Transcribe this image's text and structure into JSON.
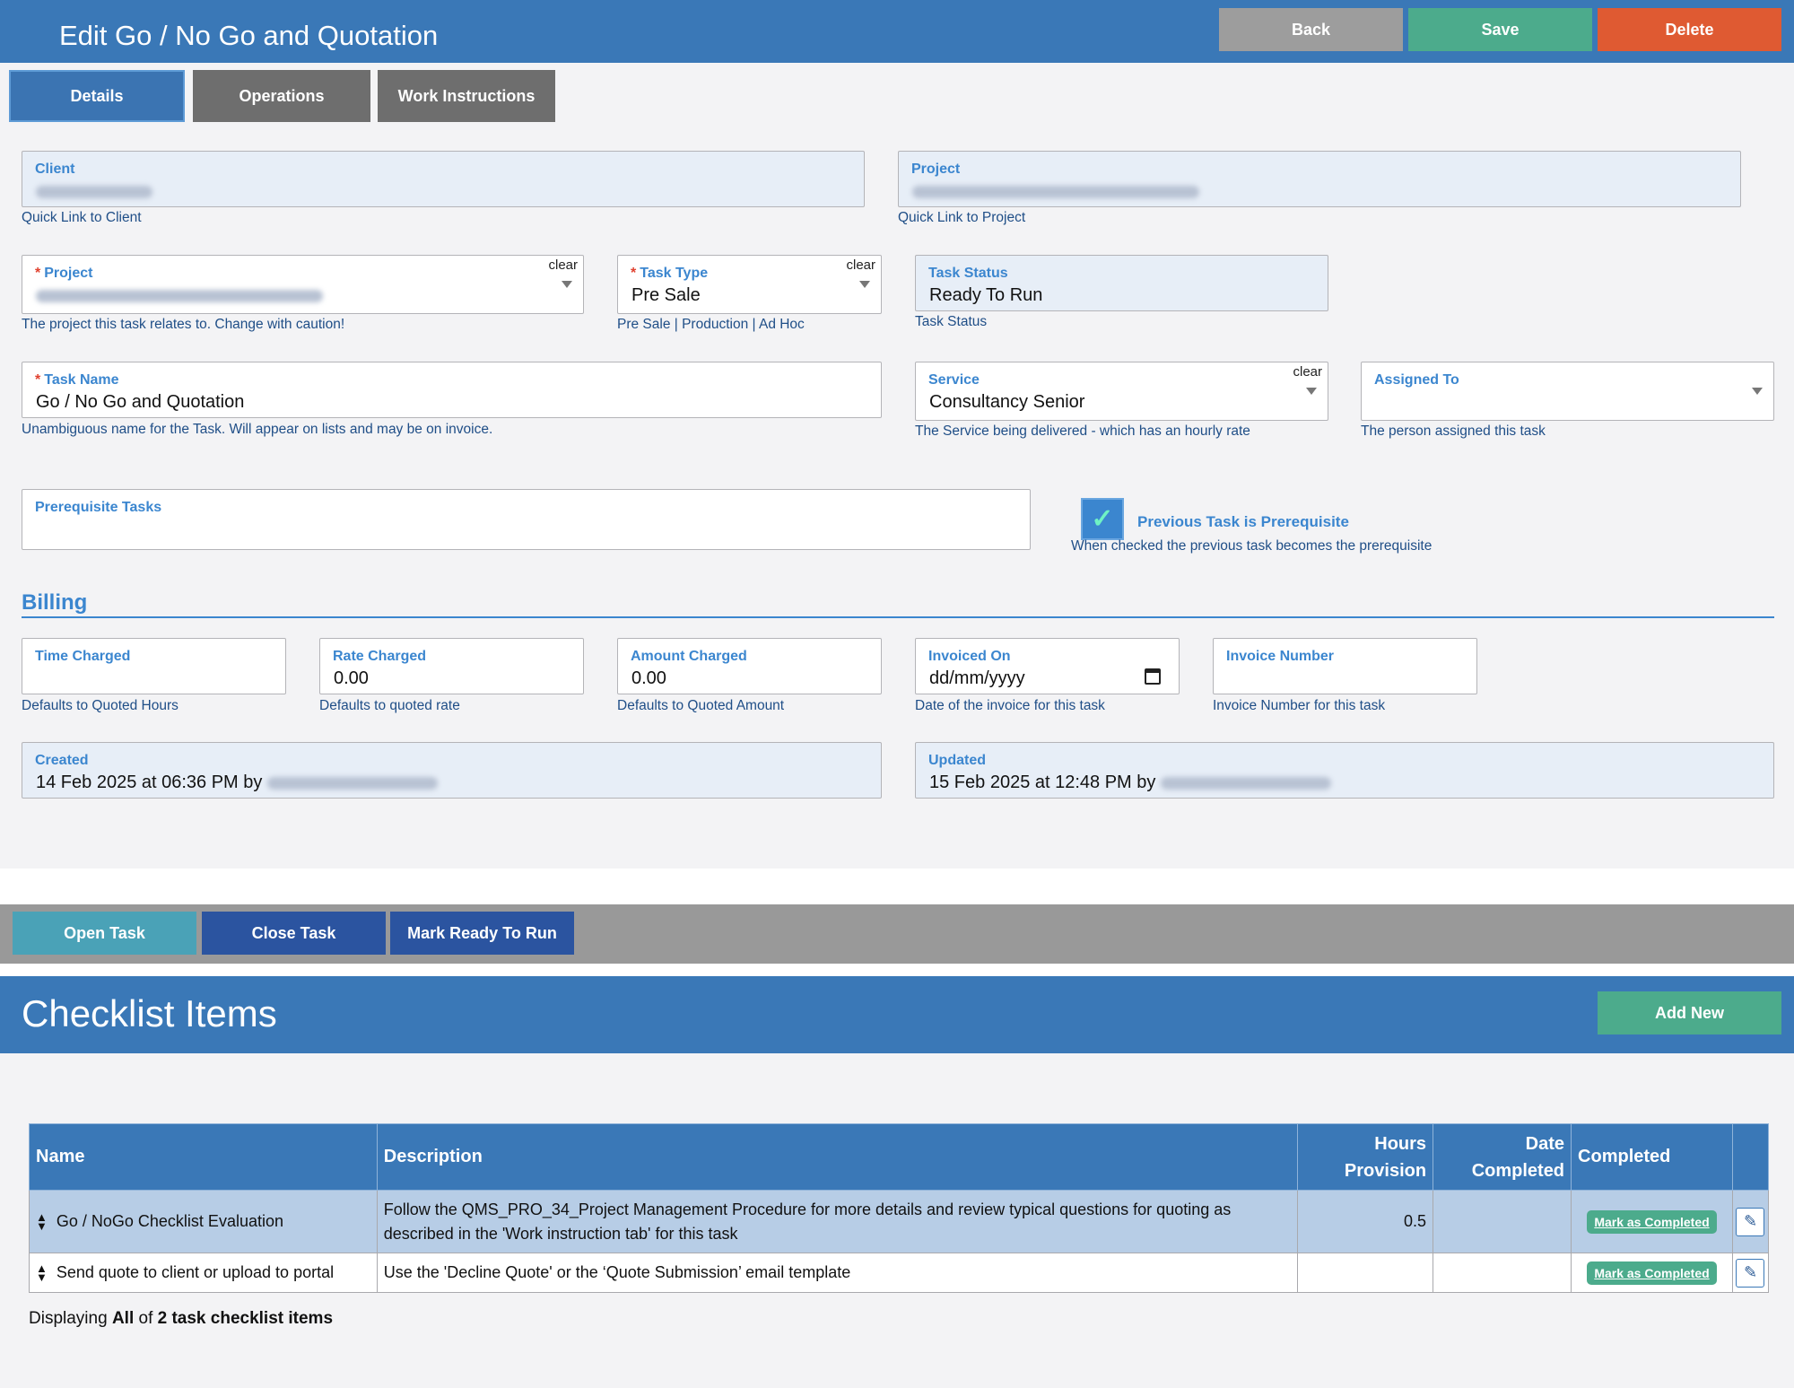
{
  "header": {
    "title": "Edit Go / No Go and Quotation",
    "back_label": "Back",
    "save_label": "Save",
    "delete_label": "Delete"
  },
  "tabs": [
    {
      "label": "Details"
    },
    {
      "label": "Operations"
    },
    {
      "label": "Work Instructions"
    }
  ],
  "fields": {
    "client": {
      "label": "Client",
      "help": "Quick Link to Client"
    },
    "project_link": {
      "label": "Project",
      "help": "Quick Link to Project"
    },
    "project": {
      "label": "Project",
      "clear": "clear",
      "help": "The project this task relates to. Change with caution!"
    },
    "task_type": {
      "label": "Task Type",
      "clear": "clear",
      "value": "Pre Sale",
      "help": "Pre Sale | Production | Ad Hoc"
    },
    "task_status": {
      "label": "Task Status",
      "value": "Ready To Run",
      "help": "Task Status"
    },
    "task_name": {
      "label": "Task Name",
      "value": "Go / No Go and Quotation",
      "help": "Unambiguous name for the Task. Will appear on lists and may be on invoice."
    },
    "service": {
      "label": "Service",
      "clear": "clear",
      "value": "Consultancy Senior",
      "help": "The Service being delivered - which has an hourly rate"
    },
    "assigned_to": {
      "label": "Assigned To",
      "help": "The person assigned this task"
    },
    "prerequisite": {
      "label": "Prerequisite Tasks"
    },
    "previous_prereq": {
      "label": "Previous Task is Prerequisite",
      "help": "When checked the previous task becomes the prerequisite",
      "checked": true
    }
  },
  "billing": {
    "title": "Billing",
    "time_charged": {
      "label": "Time Charged",
      "help": "Defaults to Quoted Hours"
    },
    "rate_charged": {
      "label": "Rate Charged",
      "value": "0.00",
      "help": "Defaults to quoted rate"
    },
    "amount_charged": {
      "label": "Amount Charged",
      "value": "0.00",
      "help": "Defaults to Quoted Amount"
    },
    "invoiced_on": {
      "label": "Invoiced On",
      "value": "dd/mm/yyyy",
      "help": "Date of the invoice for this task"
    },
    "invoice_number": {
      "label": "Invoice Number",
      "help": "Invoice Number for this task"
    },
    "created": {
      "label": "Created",
      "value": "14 Feb 2025 at 06:36 PM by"
    },
    "updated": {
      "label": "Updated",
      "value": "15 Feb 2025 at 12:48 PM by"
    }
  },
  "actions": {
    "open_task": "Open Task",
    "close_task": "Close Task",
    "mark_ready": "Mark Ready To Run"
  },
  "checklist": {
    "title": "Checklist Items",
    "add_new": "Add New",
    "columns": {
      "name": "Name",
      "description": "Description",
      "hours_1": "Hours",
      "hours_2": "Provision",
      "date_1": "Date",
      "date_2": "Completed",
      "completed": "Completed"
    },
    "rows": [
      {
        "name": "Go / NoGo Checklist Evaluation",
        "description": "Follow the QMS_PRO_34_Project Management Procedure for more details and review typical questions for quoting as described in the 'Work instruction tab' for this task",
        "hours": "0.5",
        "date_completed": "",
        "action": "Mark as Completed"
      },
      {
        "name": "Send quote to client or upload to portal",
        "description": "Use the 'Decline Quote' or the ‘Quote Submission’ email template",
        "hours": "",
        "date_completed": "",
        "action": "Mark as Completed"
      }
    ],
    "footer": {
      "prefix": "Displaying ",
      "all": "All",
      "of": " of ",
      "count": "2 task checklist items"
    }
  },
  "icons": {
    "checkmark": "check-icon",
    "sort": "sort-icon",
    "edit": "pencil-icon",
    "calendar": "calendar-icon",
    "dropdown": "chevron-down-icon"
  },
  "colors": {
    "header_blue": "#3a78b7",
    "save_green": "#4cab8c",
    "delete_red": "#df5a32",
    "back_grey": "#9d9d9d",
    "label_blue": "#3b86cf"
  }
}
